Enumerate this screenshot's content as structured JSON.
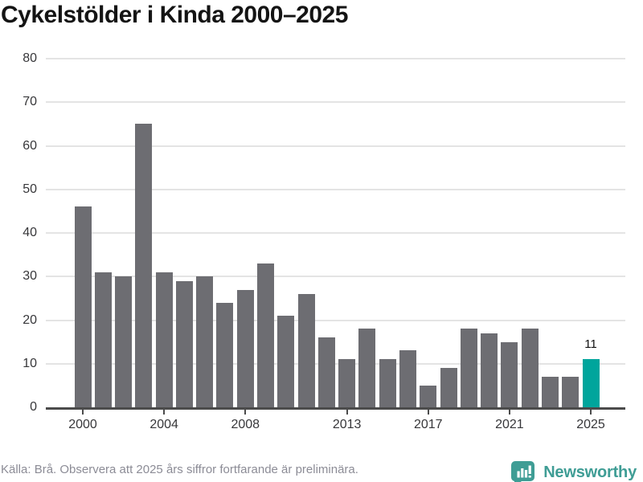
{
  "title": "Cykelstölder i Kinda 2000–2025",
  "chart_data": {
    "type": "bar",
    "title": "Cykelstölder i Kinda 2000–2025",
    "categories": [
      "2000",
      "2001",
      "2002",
      "2003",
      "2004",
      "2005",
      "2006",
      "2007",
      "2008",
      "2009",
      "2010",
      "2011",
      "2012",
      "2013",
      "2014",
      "2015",
      "2016",
      "2017",
      "2018",
      "2019",
      "2020",
      "2021",
      "2022",
      "2023",
      "2024",
      "2025"
    ],
    "values": [
      46,
      31,
      30,
      65,
      31,
      29,
      30,
      24,
      27,
      33,
      21,
      26,
      16,
      11,
      18,
      11,
      13,
      5,
      9,
      18,
      17,
      15,
      18,
      7,
      7,
      11
    ],
    "highlight": {
      "category": "2025",
      "value": 11,
      "label": "11"
    },
    "x_tick_labels": [
      "2000",
      "2004",
      "2008",
      "2013",
      "2017",
      "2021",
      "2025"
    ],
    "y_ticks": [
      0,
      10,
      20,
      30,
      40,
      50,
      60,
      70,
      80
    ],
    "ylim": [
      0,
      80
    ],
    "grid": true,
    "legend": "none",
    "colors": {
      "bar": "#6d6d72",
      "highlight": "#00a59c",
      "gridline": "#e4e4e4",
      "axis": "#4b4b4b",
      "tick_label": "#37373a",
      "annotation": "#111111"
    }
  },
  "footer": {
    "source_note": "Källa: Brå. Observera att 2025 års siffror fortfarande är preliminära.",
    "brand": "Newsworthy",
    "brand_color": "#3f9d95"
  }
}
